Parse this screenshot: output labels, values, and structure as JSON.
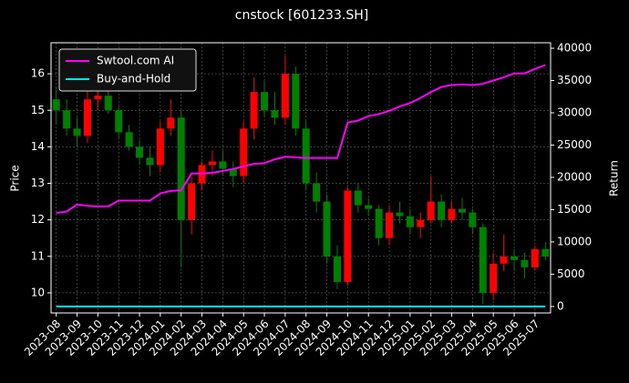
{
  "chart_data": {
    "type": "candlestick",
    "title": "cnstock [601233.SH]",
    "y_label": "Price",
    "y2_label": "Return",
    "categories": [
      "2023-08",
      null,
      "2023-09",
      null,
      "2023-10",
      null,
      "2023-11",
      null,
      "2023-12",
      null,
      "2024-01",
      null,
      "2024-02",
      null,
      "2024-03",
      null,
      "2024-04",
      null,
      "2024-05",
      null,
      "2024-06",
      null,
      "2024-07",
      null,
      "2024-08",
      null,
      "2024-09",
      null,
      "2024-10",
      null,
      "2024-11",
      null,
      "2024-12",
      null,
      "2025-01",
      null,
      "2025-02",
      null,
      "2025-03",
      null,
      "2025-04",
      null,
      "2025-05",
      null,
      "2025-06",
      null,
      "2025-07",
      null
    ],
    "open": [
      15.3,
      15.0,
      14.5,
      14.3,
      15.3,
      15.4,
      15.0,
      14.4,
      14.0,
      13.7,
      13.5,
      14.5,
      14.8,
      12.0,
      13.0,
      13.5,
      13.6,
      13.4,
      13.2,
      14.5,
      15.5,
      15.0,
      14.8,
      16.0,
      14.5,
      13.0,
      12.5,
      11.0,
      10.3,
      12.8,
      12.4,
      12.3,
      11.5,
      12.2,
      12.1,
      11.8,
      12.0,
      12.5,
      12.0,
      12.3,
      12.2,
      11.8,
      10.0,
      10.8,
      11.0,
      10.9,
      10.7,
      11.2
    ],
    "high": [
      15.6,
      15.3,
      14.8,
      15.6,
      15.7,
      15.6,
      15.1,
      14.6,
      14.2,
      14.0,
      14.7,
      15.3,
      15.0,
      13.2,
      13.6,
      13.9,
      13.9,
      13.6,
      14.7,
      15.9,
      15.8,
      15.5,
      16.5,
      16.2,
      14.7,
      13.3,
      12.7,
      11.3,
      12.9,
      13.0,
      12.6,
      12.4,
      12.4,
      12.5,
      12.3,
      12.2,
      13.2,
      12.7,
      12.5,
      12.6,
      12.3,
      11.9,
      11.1,
      11.6,
      11.2,
      11.1,
      11.3,
      11.4
    ],
    "low": [
      14.6,
      14.3,
      14.0,
      14.1,
      15.0,
      14.9,
      14.2,
      13.9,
      13.5,
      13.2,
      13.3,
      14.3,
      10.7,
      11.6,
      12.8,
      13.2,
      13.2,
      12.9,
      13.0,
      14.2,
      14.8,
      14.6,
      14.6,
      14.3,
      12.8,
      12.2,
      10.8,
      10.1,
      10.2,
      12.2,
      12.1,
      11.3,
      11.3,
      11.9,
      11.6,
      11.5,
      11.9,
      11.8,
      11.9,
      12.0,
      11.6,
      9.7,
      9.8,
      10.6,
      10.6,
      10.4,
      10.6,
      10.9
    ],
    "close": [
      15.0,
      14.5,
      14.3,
      15.3,
      15.4,
      15.0,
      14.4,
      14.0,
      13.7,
      13.5,
      14.5,
      14.8,
      12.0,
      13.0,
      13.5,
      13.6,
      13.4,
      13.2,
      14.5,
      15.5,
      15.0,
      14.8,
      16.0,
      14.5,
      13.0,
      12.5,
      11.0,
      10.3,
      12.8,
      12.4,
      12.3,
      11.5,
      12.2,
      12.1,
      11.8,
      12.0,
      12.5,
      12.0,
      12.3,
      12.2,
      11.8,
      10.0,
      10.8,
      11.0,
      10.9,
      10.7,
      11.2,
      11.0
    ],
    "up_color": "#ff0000",
    "down_color": "#008000",
    "series": [
      {
        "name": "Swtool.com AI",
        "color": "#ff00ff",
        "axis": "y2",
        "values": [
          14500,
          14700,
          15800,
          15600,
          15500,
          15500,
          16400,
          16400,
          16400,
          16400,
          17500,
          17900,
          18000,
          20600,
          20600,
          20700,
          21000,
          21300,
          21700,
          22100,
          22200,
          22800,
          23200,
          23100,
          23000,
          23000,
          23000,
          23000,
          28500,
          28800,
          29500,
          29800,
          30300,
          31000,
          31500,
          32300,
          33200,
          34000,
          34300,
          34400,
          34300,
          34500,
          35000,
          35500,
          36100,
          36100,
          36800,
          37400
        ]
      },
      {
        "name": "Buy-and-Hold",
        "color": "#00e5e5",
        "axis": "y2",
        "values": [
          0,
          0,
          0,
          0,
          0,
          0,
          0,
          0,
          0,
          0,
          0,
          0,
          0,
          0,
          0,
          0,
          0,
          0,
          0,
          0,
          0,
          0,
          0,
          0,
          0,
          0,
          0,
          0,
          0,
          0,
          0,
          0,
          0,
          0,
          0,
          0,
          0,
          0,
          0,
          0,
          0,
          0,
          0,
          0,
          0,
          0,
          0,
          0
        ]
      }
    ],
    "ylim": [
      9.45,
      16.85
    ],
    "yticks": [
      10,
      11,
      12,
      13,
      14,
      15,
      16
    ],
    "y2lim": [
      -1000,
      40850
    ],
    "y2ticks": [
      0,
      5000,
      10000,
      15000,
      20000,
      25000,
      30000,
      35000,
      40000
    ],
    "grid": true,
    "legend": "upper left"
  }
}
